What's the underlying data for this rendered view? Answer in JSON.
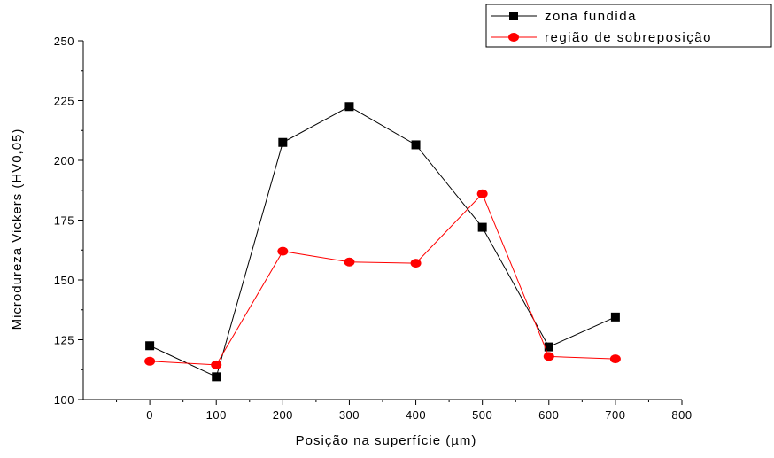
{
  "chart_data": {
    "type": "line",
    "xlabel": "Posição na superfície (µm)",
    "ylabel": "Microdureza Vickers (HV0,05)",
    "xlim": [
      -100,
      800
    ],
    "ylim": [
      100,
      250
    ],
    "x_ticks": [
      0,
      100,
      200,
      300,
      400,
      500,
      600,
      700,
      800
    ],
    "y_ticks": [
      100,
      125,
      150,
      175,
      200,
      225,
      250
    ],
    "legend_position": "top-right",
    "grid": false,
    "series": [
      {
        "name": "zona fundida",
        "color": "#000000",
        "marker": "square",
        "x": [
          0,
          100,
          200,
          300,
          400,
          500,
          600,
          700
        ],
        "values": [
          122.5,
          109.5,
          207.5,
          222.5,
          206.5,
          172,
          122,
          134.5
        ]
      },
      {
        "name": "região de sobreposição",
        "color": "#ff0000",
        "marker": "circle",
        "x": [
          0,
          100,
          200,
          300,
          400,
          500,
          600,
          700
        ],
        "values": [
          116,
          114.5,
          162,
          157.5,
          157,
          186,
          118,
          117
        ]
      }
    ]
  }
}
